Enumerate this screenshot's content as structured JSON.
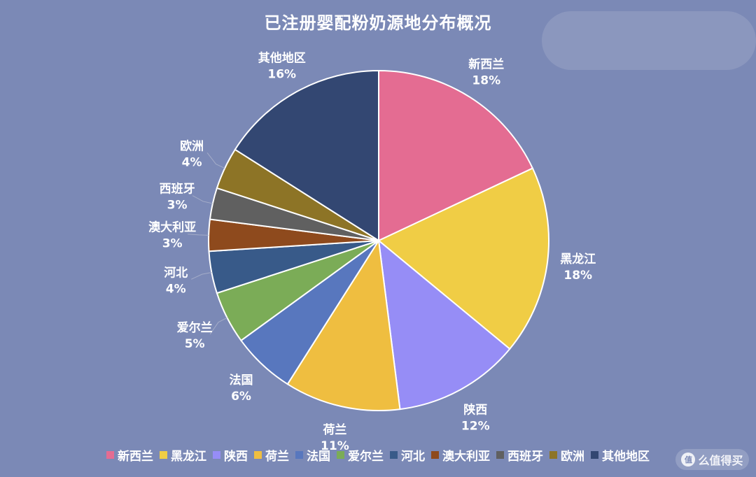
{
  "chart_data": {
    "type": "pie",
    "title": "已注册婴配粉奶源地分布概况",
    "legend_position": "bottom",
    "categories": [
      "新西兰",
      "黑龙江",
      "陕西",
      "荷兰",
      "法国",
      "爱尔兰",
      "河北",
      "澳大利亚",
      "西班牙",
      "欧洲",
      "其他地区"
    ],
    "values": [
      18,
      18,
      12,
      11,
      6,
      5,
      4,
      3,
      3,
      4,
      16
    ],
    "labels": [
      "18%",
      "18%",
      "12%",
      "11%",
      "6%",
      "5%",
      "4%",
      "3%",
      "3%",
      "4%",
      "16%"
    ],
    "colors": [
      "#e46c92",
      "#f0cd45",
      "#968df6",
      "#efbe40",
      "#5877be",
      "#7bac57",
      "#385a89",
      "#8e4a1d",
      "#606060",
      "#8d7426",
      "#334772"
    ]
  },
  "watermark": {
    "badge": "值",
    "text": "么值得买",
    "icon": "smzdm-logo-icon"
  }
}
